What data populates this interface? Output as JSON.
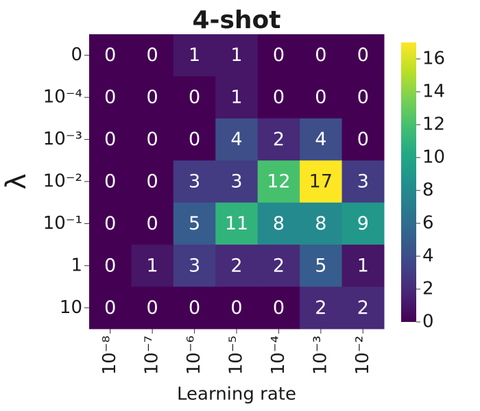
{
  "chart_data": {
    "type": "heatmap",
    "title": "4-shot",
    "xlabel": "Learning rate",
    "ylabel": "λ",
    "x": [
      "10⁻⁸",
      "10⁻⁷",
      "10⁻⁶",
      "10⁻⁵",
      "10⁻⁴",
      "10⁻³",
      "10⁻²"
    ],
    "y": [
      "0",
      "10⁻⁴",
      "10⁻³",
      "10⁻²",
      "10⁻¹",
      "1",
      "10"
    ],
    "z": [
      [
        0,
        0,
        1,
        1,
        0,
        0,
        0
      ],
      [
        0,
        0,
        0,
        1,
        0,
        0,
        0
      ],
      [
        0,
        0,
        0,
        4,
        2,
        4,
        0
      ],
      [
        0,
        0,
        3,
        3,
        12,
        17,
        3
      ],
      [
        0,
        0,
        5,
        11,
        8,
        8,
        9
      ],
      [
        0,
        1,
        3,
        2,
        2,
        5,
        1
      ],
      [
        0,
        0,
        0,
        0,
        0,
        2,
        2
      ]
    ],
    "colormap": "viridis",
    "zlim": [
      0,
      17
    ],
    "zticks": [
      0,
      2,
      4,
      6,
      8,
      10,
      12,
      14,
      16
    ]
  }
}
